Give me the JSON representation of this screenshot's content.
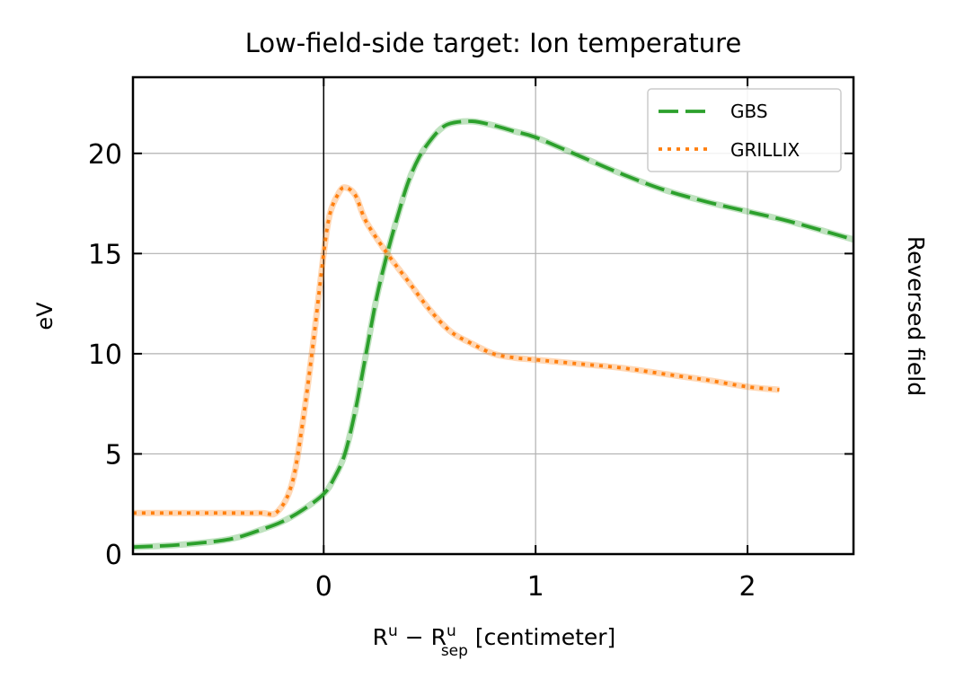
{
  "chart_data": {
    "type": "line",
    "title": "Low-field-side target: Ion temperature",
    "xlabel": {
      "base": "R",
      "sup1": "u",
      "minus": " − R",
      "sup2": "u",
      "sub2": "sep",
      "unit": " [centimeter]"
    },
    "ylabel": "eV",
    "side_label": "Reversed field",
    "xlim": [
      -0.9,
      2.5
    ],
    "ylim": [
      0,
      23.8
    ],
    "xticks": [
      0,
      1,
      2
    ],
    "xtick_labels": [
      "0",
      "1",
      "2"
    ],
    "yticks": [
      0,
      5,
      10,
      15,
      20
    ],
    "ytick_labels": [
      "0",
      "5",
      "10",
      "15",
      "20"
    ],
    "grid": true,
    "separatrix_x": 0,
    "legend_position": "top-right",
    "series": [
      {
        "name": "GBS",
        "color": "#2ca02c",
        "style": "dashed",
        "x": [
          -0.9,
          -0.7,
          -0.5,
          -0.4,
          -0.3,
          -0.2,
          -0.1,
          0.0,
          0.05,
          0.1,
          0.15,
          0.2,
          0.25,
          0.3,
          0.35,
          0.4,
          0.45,
          0.5,
          0.55,
          0.6,
          0.7,
          0.8,
          0.9,
          1.0,
          1.2,
          1.4,
          1.6,
          1.8,
          2.0,
          2.2,
          2.5
        ],
        "y": [
          0.35,
          0.45,
          0.65,
          0.85,
          1.2,
          1.6,
          2.2,
          3.0,
          3.8,
          5.0,
          7.2,
          10.0,
          12.8,
          15.0,
          16.9,
          18.6,
          19.8,
          20.6,
          21.2,
          21.5,
          21.6,
          21.4,
          21.1,
          20.8,
          19.9,
          19.0,
          18.2,
          17.6,
          17.1,
          16.6,
          15.7
        ]
      },
      {
        "name": "GRILLIX",
        "color": "#ff7f0e",
        "style": "dotted",
        "x": [
          -0.9,
          -0.7,
          -0.5,
          -0.3,
          -0.22,
          -0.15,
          -0.1,
          -0.05,
          0.0,
          0.03,
          0.07,
          0.1,
          0.15,
          0.2,
          0.3,
          0.4,
          0.5,
          0.6,
          0.7,
          0.8,
          0.9,
          1.0,
          1.2,
          1.4,
          1.6,
          1.8,
          2.0,
          2.15
        ],
        "y": [
          2.05,
          2.05,
          2.05,
          2.05,
          2.1,
          3.5,
          6.5,
          10.5,
          15.0,
          17.0,
          18.0,
          18.3,
          17.9,
          16.6,
          15.0,
          13.6,
          12.2,
          11.1,
          10.5,
          10.0,
          9.8,
          9.7,
          9.5,
          9.3,
          9.0,
          8.7,
          8.35,
          8.2
        ]
      }
    ]
  }
}
